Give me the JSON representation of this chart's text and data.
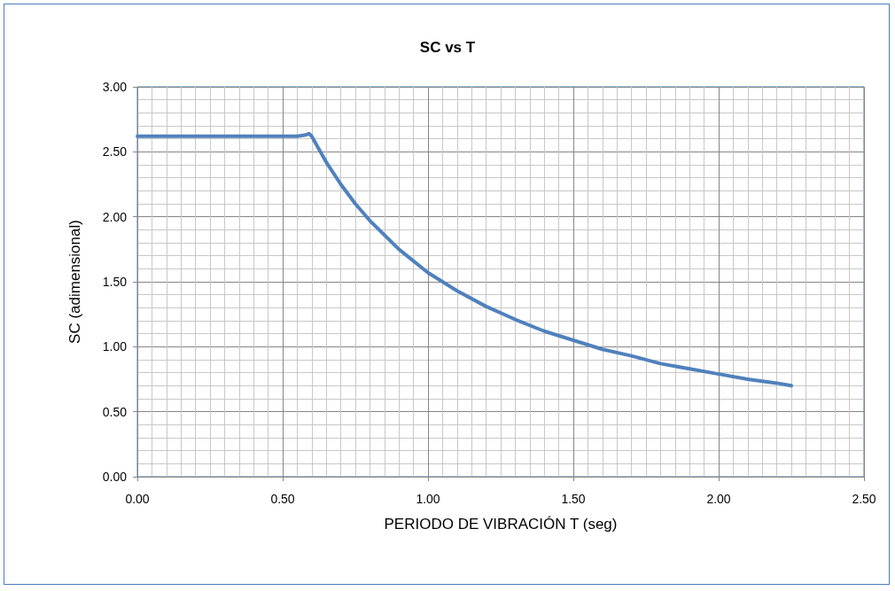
{
  "chart_data": {
    "type": "line",
    "title": "SC vs T",
    "xlabel": "PERIODO DE VIBRACIÓN T (seg)",
    "ylabel": "SC (adimensional)",
    "series": [
      {
        "color": "#4f81bd",
        "x": [
          0,
          0.1,
          0.2,
          0.3,
          0.4,
          0.5,
          0.55,
          0.58,
          0.59,
          0.6,
          0.625,
          0.65,
          0.7,
          0.75,
          0.8,
          0.9,
          1.0,
          1.1,
          1.2,
          1.3,
          1.4,
          1.5,
          1.6,
          1.7,
          1.8,
          1.9,
          2.0,
          2.1,
          2.2,
          2.25
        ],
        "values": [
          2.62,
          2.62,
          2.62,
          2.62,
          2.62,
          2.62,
          2.62,
          2.63,
          2.64,
          2.62,
          2.52,
          2.42,
          2.25,
          2.1,
          1.97,
          1.75,
          1.57,
          1.43,
          1.31,
          1.21,
          1.12,
          1.05,
          0.98,
          0.93,
          0.87,
          0.83,
          0.79,
          0.75,
          0.72,
          0.7
        ]
      }
    ],
    "xlim": [
      0,
      2.5
    ],
    "xticks": [
      {
        "value": 0,
        "label": "0.00"
      },
      {
        "value": 0.5,
        "label": "0.50"
      },
      {
        "value": 1,
        "label": "1.00"
      },
      {
        "value": 1.5,
        "label": "1.50"
      },
      {
        "value": 2,
        "label": "2.00"
      },
      {
        "value": 2.5,
        "label": "2.50"
      }
    ],
    "ylim": [
      0,
      3
    ],
    "yticks": [
      {
        "value": 0,
        "label": "0.00"
      },
      {
        "value": 0.5,
        "label": "0.50"
      },
      {
        "value": 1,
        "label": "1.00"
      },
      {
        "value": 1.5,
        "label": "1.50"
      },
      {
        "value": 2,
        "label": "2.00"
      },
      {
        "value": 2.5,
        "label": "2.50"
      },
      {
        "value": 3,
        "label": "3.00"
      }
    ],
    "grid": true,
    "marker": "none",
    "line_style": "solid"
  }
}
